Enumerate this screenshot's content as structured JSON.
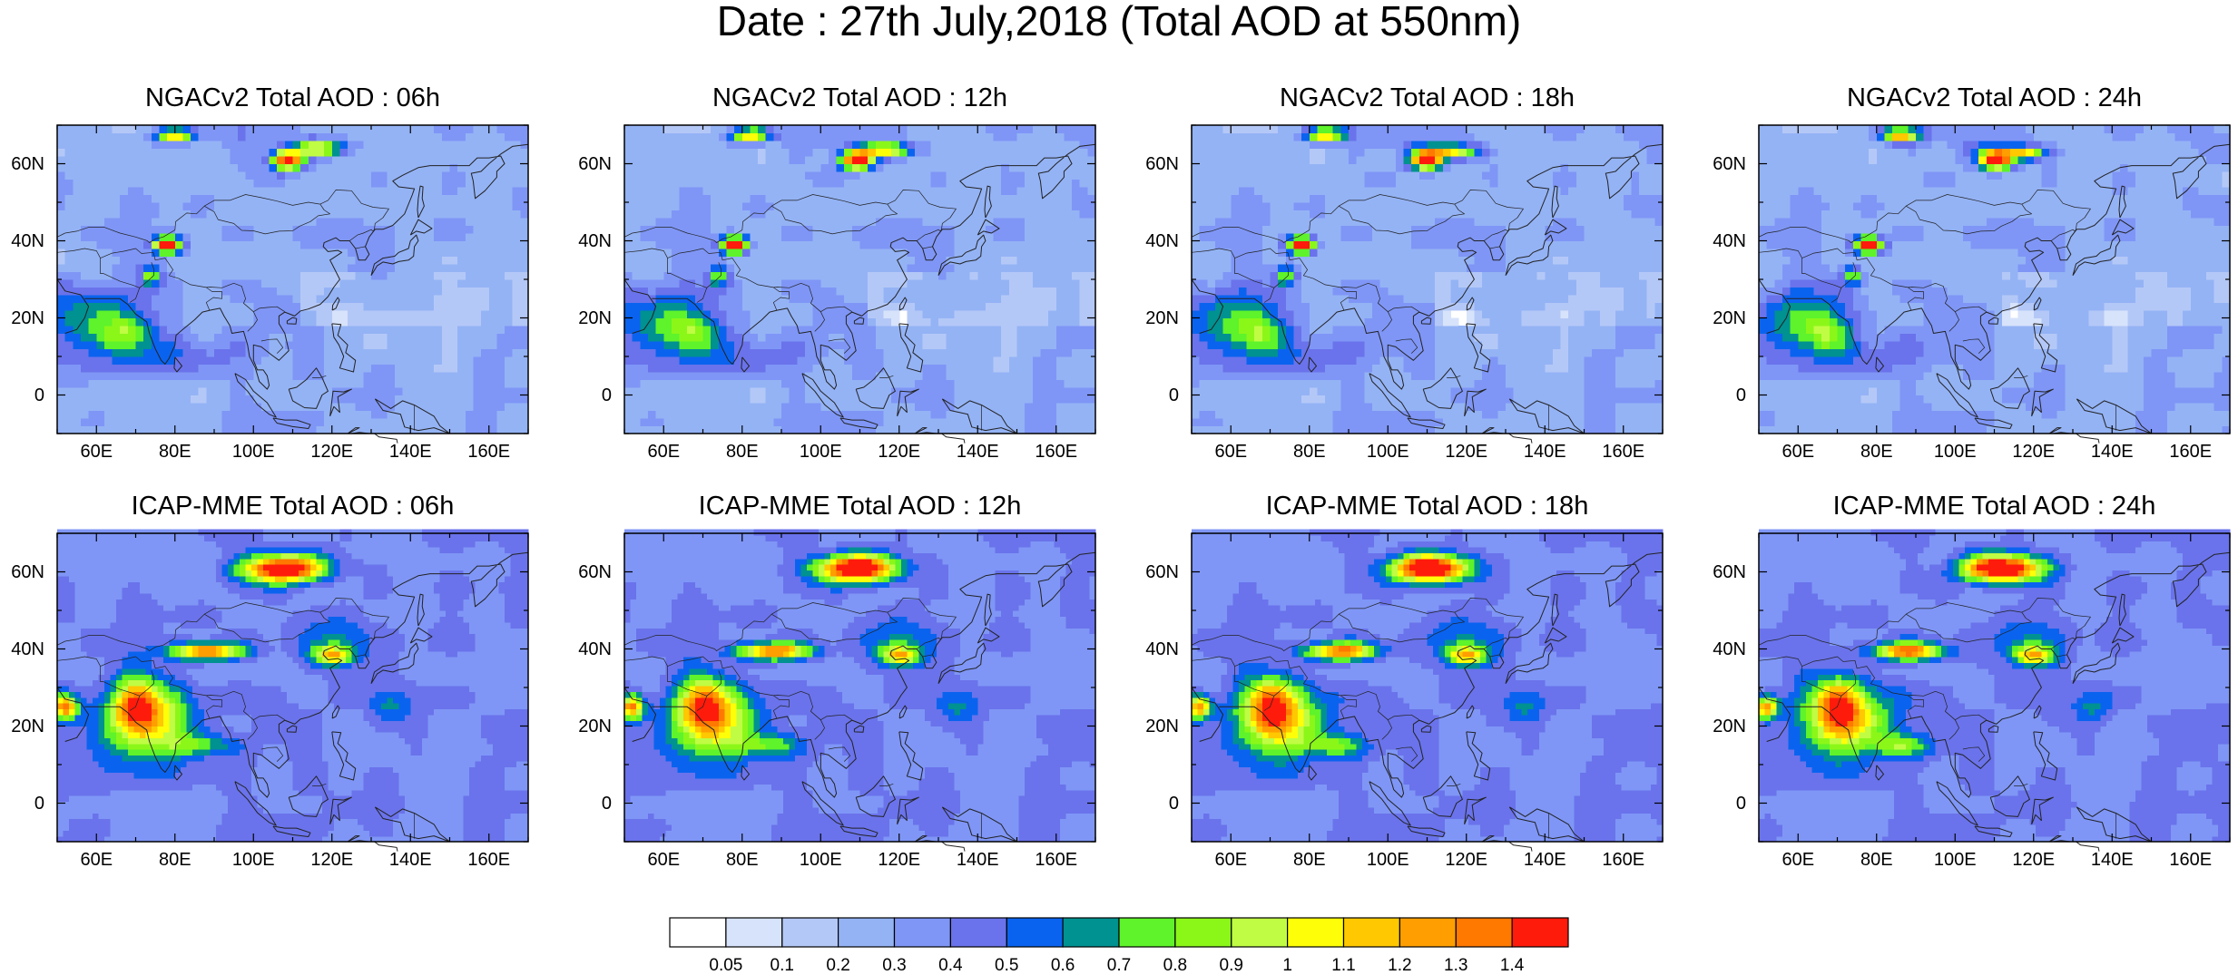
{
  "title": "Date : 27th July,2018 (Total AOD at 550nm)",
  "panels": [
    {
      "title": "NGACv2 Total AOD : 06h",
      "model": "ngac",
      "hour": 6
    },
    {
      "title": "NGACv2 Total AOD : 12h",
      "model": "ngac",
      "hour": 12
    },
    {
      "title": "NGACv2 Total AOD : 18h",
      "model": "ngac",
      "hour": 18
    },
    {
      "title": "NGACv2 Total AOD : 24h",
      "model": "ngac",
      "hour": 24
    },
    {
      "title": "ICAP-MME Total AOD : 06h",
      "model": "icap",
      "hour": 6
    },
    {
      "title": "ICAP-MME Total AOD : 12h",
      "model": "icap",
      "hour": 12
    },
    {
      "title": "ICAP-MME Total AOD : 18h",
      "model": "icap",
      "hour": 18
    },
    {
      "title": "ICAP-MME Total AOD : 24h",
      "model": "icap",
      "hour": 24
    }
  ],
  "map_extent": {
    "lon": [
      50,
      170
    ],
    "lat": [
      -10,
      70
    ]
  },
  "x_ticks": [
    {
      "value": 60,
      "label": "60E"
    },
    {
      "value": 80,
      "label": "80E"
    },
    {
      "value": 100,
      "label": "100E"
    },
    {
      "value": 120,
      "label": "120E"
    },
    {
      "value": 140,
      "label": "140E"
    },
    {
      "value": 160,
      "label": "160E"
    }
  ],
  "y_ticks": [
    {
      "value": 0,
      "label": "0"
    },
    {
      "value": 20,
      "label": "20N"
    },
    {
      "value": 40,
      "label": "40N"
    },
    {
      "value": 60,
      "label": "60N"
    }
  ],
  "colorbar": {
    "levels": [
      "0.05",
      "0.1",
      "0.2",
      "0.3",
      "0.4",
      "0.5",
      "0.6",
      "0.7",
      "0.8",
      "0.9",
      "1",
      "1.1",
      "1.2",
      "1.3",
      "1.4"
    ],
    "colors": [
      "#ffffff",
      "#d7e3fb",
      "#b4c8f7",
      "#94b3f5",
      "#7f96f6",
      "#6a73eb",
      "#0a63ef",
      "#009191",
      "#5ef32a",
      "#8bf719",
      "#c0fc44",
      "#fefe08",
      "#ffc800",
      "#ff9e00",
      "#ff7800",
      "#ff1b0b"
    ]
  }
}
